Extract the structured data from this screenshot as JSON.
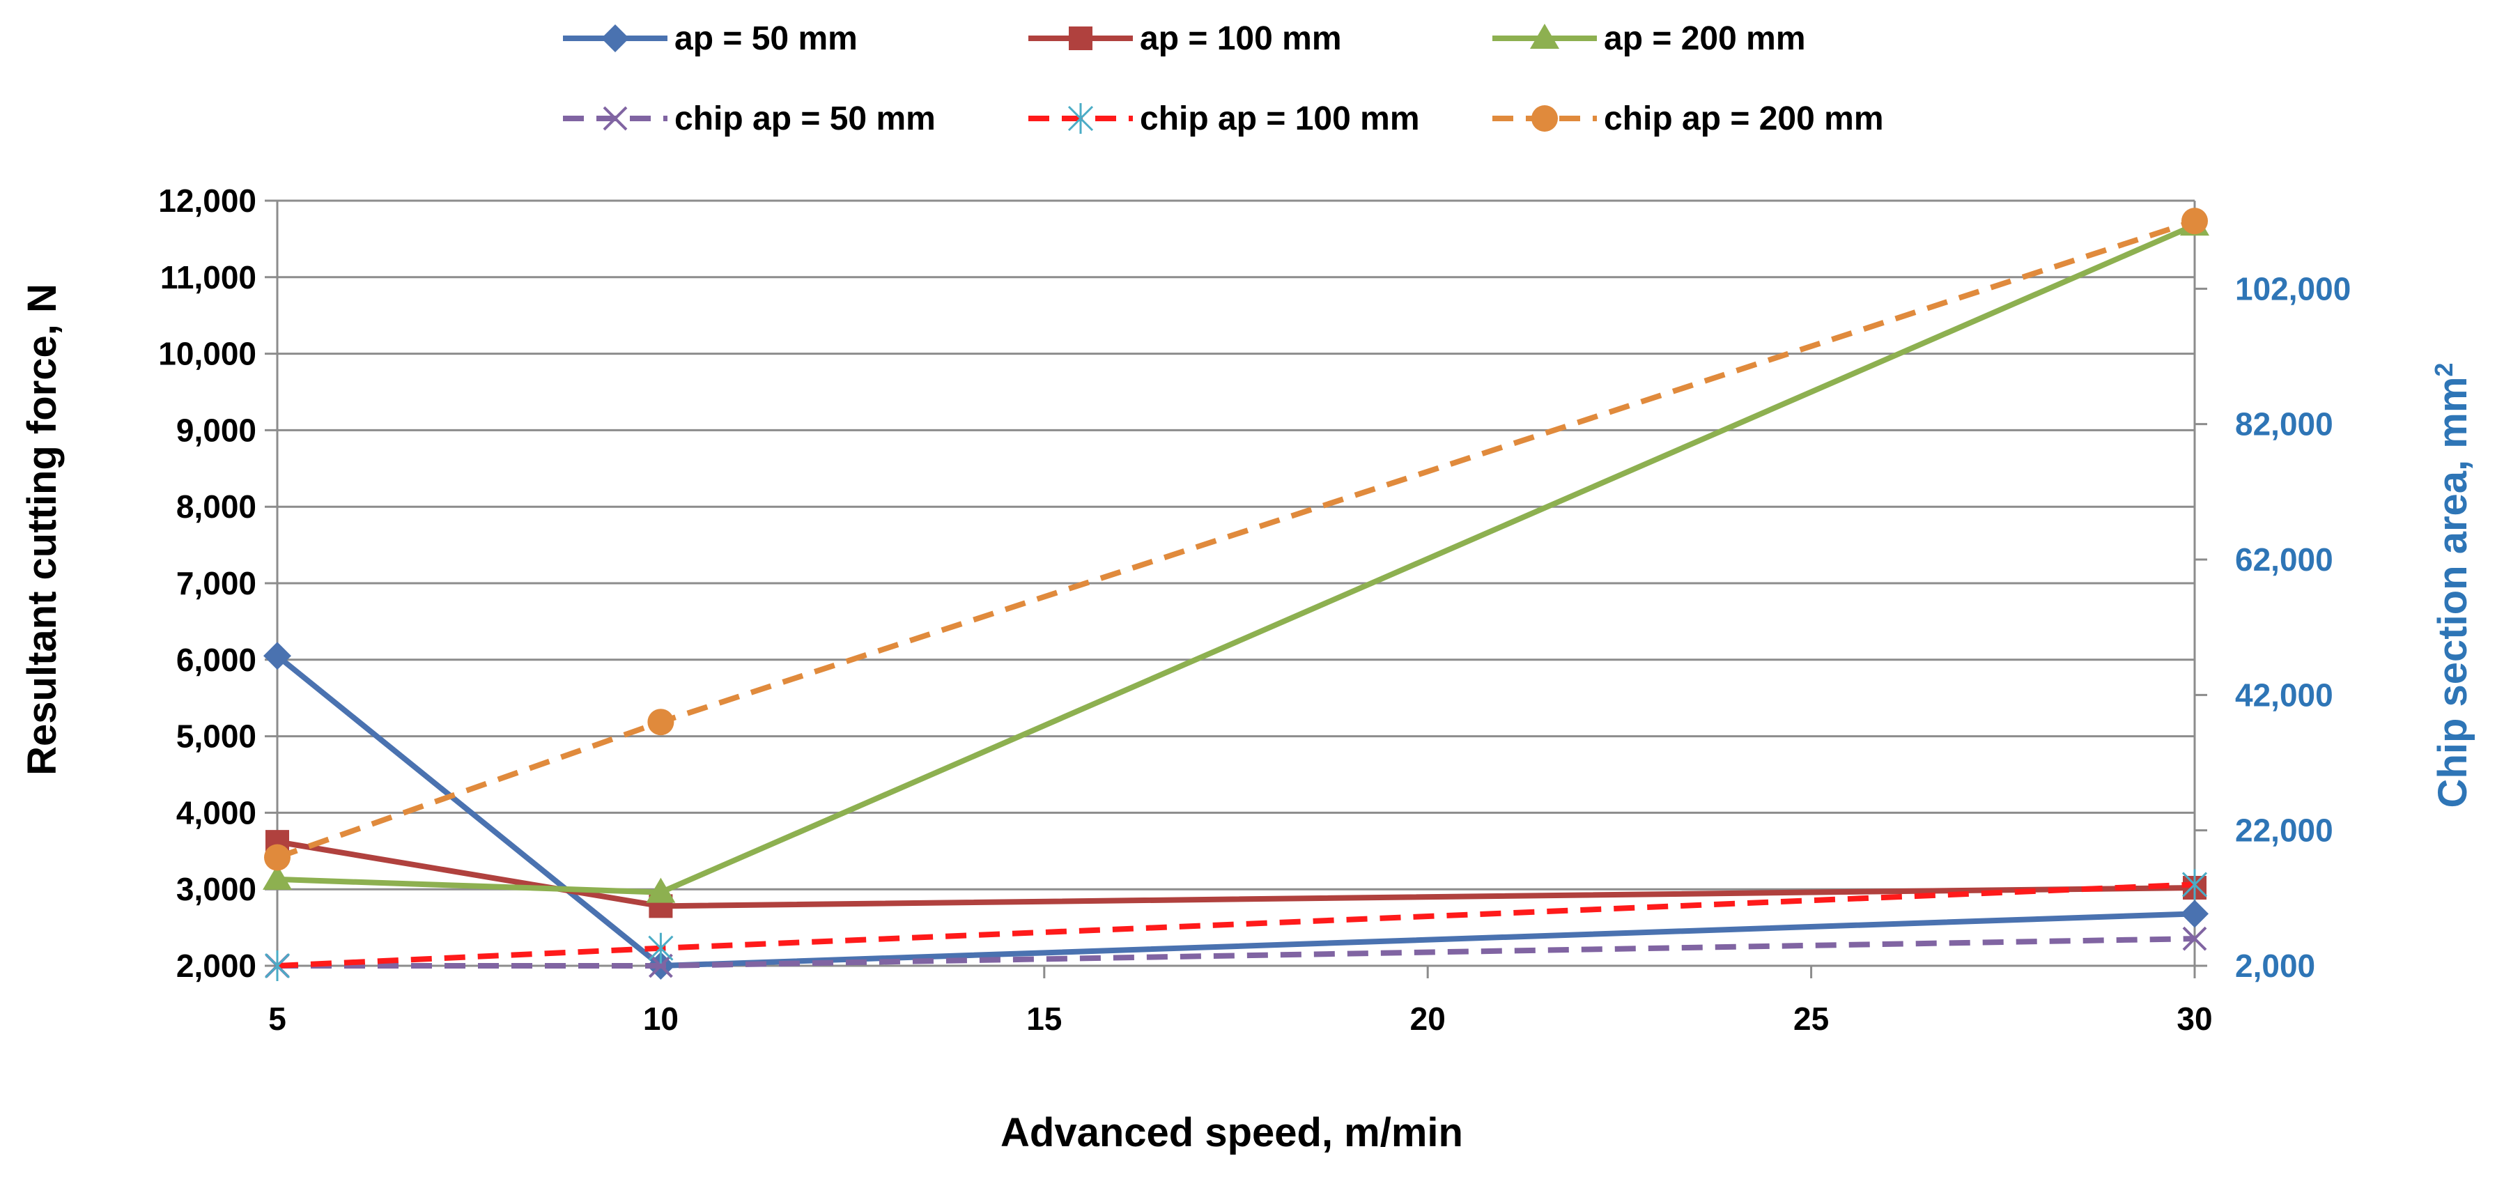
{
  "chart_data": {
    "type": "line",
    "title": "",
    "xlabel": "Advanced speed, m/min",
    "ylabel": "Resultant cutting force, N",
    "y2label": "Chip section area, mm",
    "y2label_sup": "2",
    "xlim": [
      5,
      30
    ],
    "xticks": [
      "5",
      "10",
      "15",
      "20",
      "25",
      "30"
    ],
    "xtick_values": [
      5,
      10,
      15,
      20,
      25,
      30
    ],
    "ylim": [
      2000,
      12000
    ],
    "yticks": [
      "2,000",
      "3,000",
      "4,000",
      "5,000",
      "6,000",
      "7,000",
      "8,000",
      "9,000",
      "10,000",
      "11,000",
      "12,000"
    ],
    "ytick_values": [
      2000,
      3000,
      4000,
      5000,
      6000,
      7000,
      8000,
      9000,
      10000,
      11000,
      12000
    ],
    "y2lim": [
      2000,
      115000
    ],
    "y2ticks": [
      "2,000",
      "22,000",
      "42,000",
      "62,000",
      "82,000",
      "102,000"
    ],
    "y2tick_values": [
      2000,
      22000,
      42000,
      62000,
      82000,
      102000
    ],
    "y2_color": "#2e75b6",
    "grid": true,
    "legend_position": "top",
    "x": [
      5,
      10,
      30
    ],
    "series": [
      {
        "name": "ap = 50 mm",
        "axis": "left",
        "values": [
          6050,
          2000,
          2680
        ],
        "color": "#4a72b0",
        "marker": "diamond",
        "dashed": false
      },
      {
        "name": "ap = 100 mm",
        "axis": "left",
        "values": [
          3620,
          2780,
          3020
        ],
        "color": "#b0413e",
        "marker": "square",
        "dashed": false
      },
      {
        "name": "ap = 200 mm",
        "axis": "left",
        "values": [
          3130,
          2960,
          11680
        ],
        "color": "#8db050",
        "marker": "triangle",
        "dashed": false
      },
      {
        "name": "chip ap = 50 mm",
        "axis": "right",
        "values": [
          1500,
          2000,
          6000
        ],
        "color": "#8064a2",
        "marker": "x",
        "dashed": true
      },
      {
        "name": "chip ap = 100 mm",
        "axis": "right",
        "values": [
          2000,
          4600,
          14000
        ],
        "color": "#ff1a1a",
        "marker": "star",
        "dashed": true
      },
      {
        "name": "chip ap = 200 mm",
        "axis": "right",
        "values": [
          18000,
          38000,
          112000
        ],
        "color": "#e08a3c",
        "marker": "circle",
        "dashed": true
      }
    ]
  }
}
